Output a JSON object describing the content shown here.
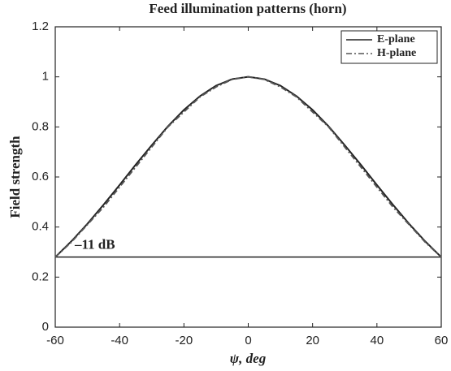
{
  "chart_data": {
    "type": "line",
    "title": "Feed illumination patterns (horn)",
    "xlabel": "ψ, deg",
    "ylabel": "Field strength",
    "x": [
      -60,
      -55,
      -50,
      -45,
      -40,
      -35,
      -30,
      -25,
      -20,
      -15,
      -10,
      -5,
      0,
      5,
      10,
      15,
      20,
      25,
      30,
      35,
      40,
      45,
      50,
      55,
      60
    ],
    "series": [
      {
        "name": "E-plane",
        "color": "#222222",
        "style": "solid",
        "values": [
          0.28,
          0.343,
          0.413,
          0.489,
          0.568,
          0.649,
          0.727,
          0.802,
          0.868,
          0.923,
          0.965,
          0.991,
          1.0,
          0.991,
          0.965,
          0.923,
          0.868,
          0.802,
          0.727,
          0.649,
          0.568,
          0.489,
          0.413,
          0.343,
          0.28
        ]
      },
      {
        "name": "H-plane",
        "color": "#555555",
        "style": "dashdot",
        "values": [
          0.28,
          0.34,
          0.41,
          0.48,
          0.56,
          0.64,
          0.72,
          0.8,
          0.86,
          0.92,
          0.96,
          0.99,
          1.0,
          0.99,
          0.96,
          0.92,
          0.86,
          0.8,
          0.72,
          0.64,
          0.56,
          0.48,
          0.41,
          0.34,
          0.28
        ]
      }
    ],
    "reference_line": {
      "value": 0.28,
      "label": "–11 dB"
    },
    "xlim": [
      -60,
      60
    ],
    "xticks": [
      -60,
      -40,
      -20,
      0,
      20,
      40,
      60
    ],
    "ylim": [
      0,
      1.2
    ],
    "yticks": [
      0,
      0.2,
      0.4,
      0.6,
      0.8,
      1,
      1.2
    ],
    "legend": "upper right",
    "grid": false
  }
}
